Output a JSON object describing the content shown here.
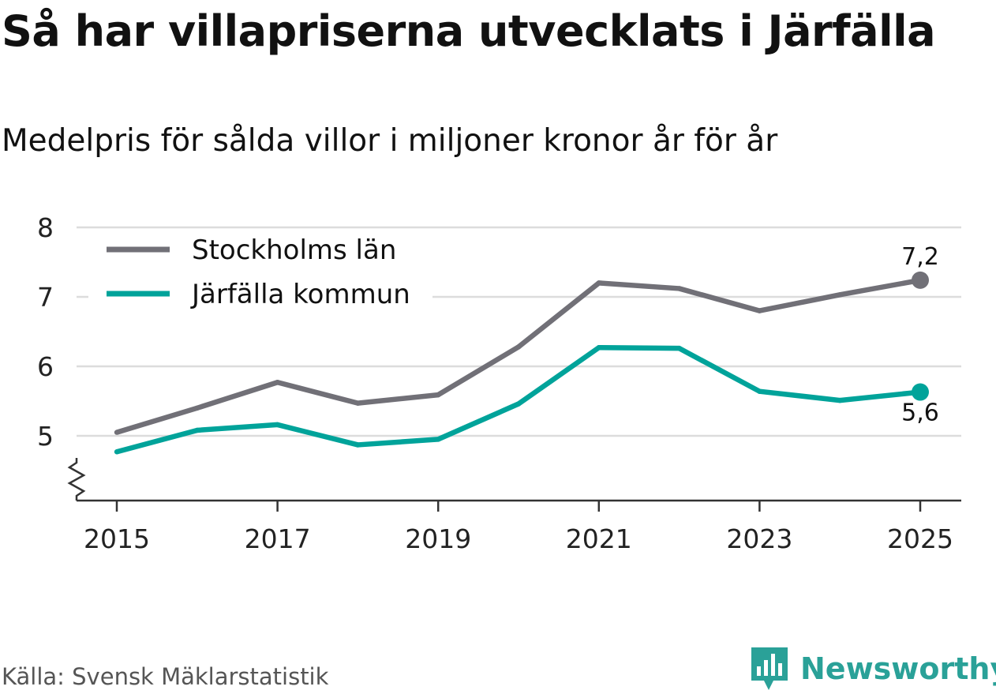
{
  "header": {
    "title": "Så har villapriserna utvecklats i Järfälla",
    "subtitle": "Medelpris för sålda villor i miljoner kronor år för år"
  },
  "footer": {
    "source": "Källa: Svensk Mäklarstatistik",
    "brand": "Newsworthy"
  },
  "colors": {
    "stockholm": "#717077",
    "jarfalla": "#00a39a",
    "grid": "#dcdcdc",
    "axis": "#333333",
    "brand": "#2aa198"
  },
  "chart_data": {
    "type": "line",
    "title": "Så har villapriserna utvecklats i Järfälla",
    "subtitle": "Medelpris för sålda villor i miljoner kronor år för år",
    "xlabel": "",
    "ylabel": "",
    "x": [
      2015,
      2016,
      2017,
      2018,
      2019,
      2020,
      2021,
      2022,
      2023,
      2024,
      2025
    ],
    "x_ticks": [
      "2015",
      "2017",
      "2019",
      "2021",
      "2023",
      "2025"
    ],
    "y_ticks": [
      "5",
      "6",
      "7",
      "8"
    ],
    "ylim": [
      4.05,
      8
    ],
    "y_axis_break": true,
    "grid": true,
    "legend_position": "top-left",
    "series": [
      {
        "name": "Stockholms län",
        "color": "#717077",
        "values": [
          5.05,
          5.4,
          5.77,
          5.47,
          5.59,
          6.28,
          7.2,
          7.12,
          6.8,
          7.03,
          7.24
        ],
        "end_label": "7,2",
        "end_label_position": "above"
      },
      {
        "name": "Järfälla kommun",
        "color": "#00a39a",
        "values": [
          4.77,
          5.08,
          5.16,
          4.87,
          4.95,
          5.46,
          6.27,
          6.26,
          5.64,
          5.51,
          5.63
        ],
        "end_label": "5,6",
        "end_label_position": "below"
      }
    ]
  }
}
